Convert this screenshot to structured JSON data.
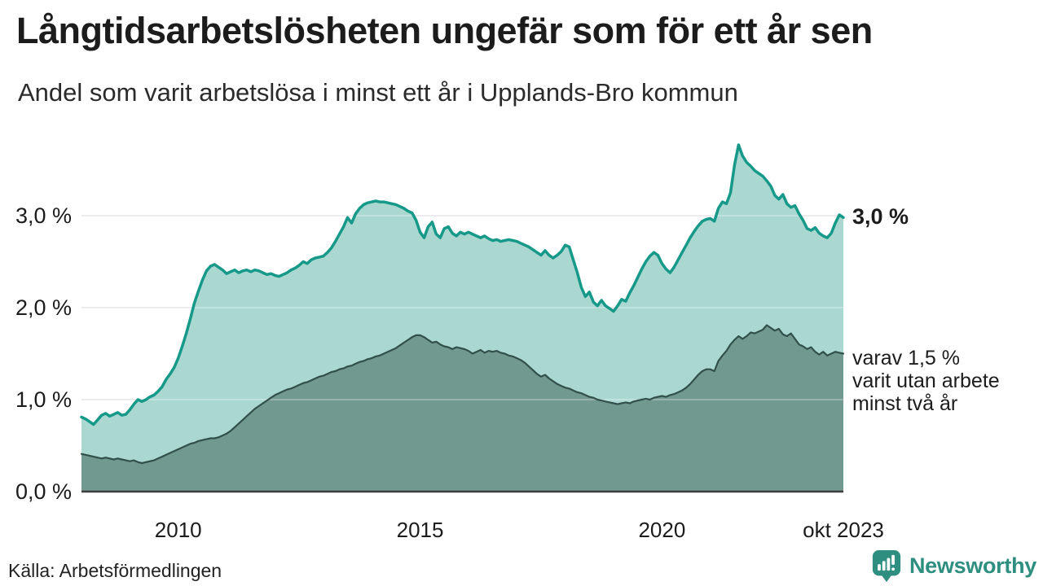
{
  "header": {
    "title": "Långtidsarbetslösheten ungefär som för ett år sen",
    "subtitle": "Andel som varit arbetslösa i minst ett år i Upplands-Bro kommun"
  },
  "chart_data": {
    "type": "area",
    "x_start": "2008-01",
    "x_end": "2023-10",
    "x_unit": "month",
    "ylim": [
      0,
      4.0
    ],
    "grid": true,
    "gridline_values": [
      1,
      2,
      3
    ],
    "y_ticks": [
      {
        "value": 0,
        "label": "0,0 %"
      },
      {
        "value": 1,
        "label": "1,0 %"
      },
      {
        "value": 2,
        "label": "2,0 %"
      },
      {
        "value": 3,
        "label": "3,0 %"
      }
    ],
    "x_ticks": [
      {
        "label": "2010",
        "month_index": 24
      },
      {
        "label": "2015",
        "month_index": 84
      },
      {
        "label": "2020",
        "month_index": 144
      },
      {
        "label": "okt 2023",
        "month_index": 189
      }
    ],
    "colors": {
      "grid": "#dcdce0",
      "baseline": "#3f3f3f",
      "text": "#1c1c1c",
      "brand_teal": "#2e8f80"
    },
    "series": [
      {
        "id": "arbetslosa-minst-ett-ar",
        "label": "Andel som varit arbetslösa i minst ett år",
        "stroke": "#17998a",
        "fill": "#aad8d1",
        "stroke_width": 3.5,
        "values": [
          0.81,
          0.79,
          0.76,
          0.73,
          0.78,
          0.83,
          0.85,
          0.82,
          0.84,
          0.86,
          0.83,
          0.84,
          0.89,
          0.95,
          1.0,
          0.98,
          1.0,
          1.03,
          1.05,
          1.09,
          1.14,
          1.22,
          1.28,
          1.35,
          1.45,
          1.58,
          1.72,
          1.88,
          2.05,
          2.18,
          2.3,
          2.4,
          2.45,
          2.47,
          2.44,
          2.41,
          2.37,
          2.39,
          2.41,
          2.38,
          2.4,
          2.41,
          2.39,
          2.41,
          2.4,
          2.38,
          2.36,
          2.37,
          2.35,
          2.34,
          2.36,
          2.38,
          2.41,
          2.43,
          2.46,
          2.5,
          2.48,
          2.52,
          2.54,
          2.55,
          2.56,
          2.6,
          2.65,
          2.72,
          2.8,
          2.88,
          2.98,
          2.92,
          3.02,
          3.08,
          3.12,
          3.14,
          3.15,
          3.16,
          3.15,
          3.15,
          3.14,
          3.13,
          3.12,
          3.1,
          3.08,
          3.05,
          3.03,
          2.95,
          2.82,
          2.76,
          2.88,
          2.93,
          2.8,
          2.76,
          2.86,
          2.88,
          2.81,
          2.78,
          2.82,
          2.8,
          2.82,
          2.8,
          2.78,
          2.76,
          2.78,
          2.75,
          2.73,
          2.74,
          2.72,
          2.73,
          2.74,
          2.73,
          2.72,
          2.7,
          2.68,
          2.66,
          2.63,
          2.6,
          2.57,
          2.62,
          2.57,
          2.54,
          2.57,
          2.61,
          2.68,
          2.66,
          2.52,
          2.38,
          2.22,
          2.12,
          2.17,
          2.06,
          2.02,
          2.08,
          2.02,
          1.99,
          1.96,
          2.02,
          2.09,
          2.07,
          2.16,
          2.24,
          2.33,
          2.42,
          2.5,
          2.56,
          2.6,
          2.57,
          2.48,
          2.42,
          2.38,
          2.44,
          2.52,
          2.6,
          2.68,
          2.76,
          2.83,
          2.89,
          2.94,
          2.96,
          2.97,
          2.94,
          3.08,
          3.15,
          3.13,
          3.25,
          3.55,
          3.77,
          3.65,
          3.58,
          3.54,
          3.49,
          3.46,
          3.43,
          3.38,
          3.32,
          3.22,
          3.18,
          3.23,
          3.13,
          3.09,
          3.11,
          3.02,
          2.95,
          2.86,
          2.84,
          2.87,
          2.81,
          2.78,
          2.76,
          2.81,
          2.92,
          3.01,
          2.98
        ]
      },
      {
        "id": "varav-utan-arbete-minst-tva-ar",
        "label": "varav varit utan arbete minst två år",
        "stroke": "#31504a",
        "fill": "#71998f",
        "stroke_width": 2.2,
        "values": [
          0.41,
          0.4,
          0.39,
          0.38,
          0.37,
          0.36,
          0.37,
          0.36,
          0.35,
          0.36,
          0.35,
          0.34,
          0.33,
          0.34,
          0.32,
          0.31,
          0.32,
          0.33,
          0.34,
          0.36,
          0.38,
          0.4,
          0.42,
          0.44,
          0.46,
          0.48,
          0.5,
          0.52,
          0.53,
          0.55,
          0.56,
          0.57,
          0.58,
          0.58,
          0.59,
          0.61,
          0.63,
          0.66,
          0.7,
          0.74,
          0.78,
          0.82,
          0.86,
          0.9,
          0.93,
          0.96,
          0.99,
          1.02,
          1.05,
          1.07,
          1.09,
          1.11,
          1.12,
          1.14,
          1.16,
          1.18,
          1.19,
          1.21,
          1.23,
          1.25,
          1.26,
          1.28,
          1.3,
          1.31,
          1.33,
          1.34,
          1.36,
          1.37,
          1.39,
          1.41,
          1.42,
          1.44,
          1.45,
          1.47,
          1.48,
          1.5,
          1.52,
          1.54,
          1.56,
          1.59,
          1.62,
          1.65,
          1.68,
          1.7,
          1.7,
          1.68,
          1.65,
          1.62,
          1.63,
          1.6,
          1.58,
          1.57,
          1.55,
          1.57,
          1.56,
          1.55,
          1.53,
          1.5,
          1.52,
          1.54,
          1.51,
          1.53,
          1.52,
          1.53,
          1.51,
          1.5,
          1.48,
          1.47,
          1.45,
          1.43,
          1.4,
          1.36,
          1.32,
          1.28,
          1.25,
          1.27,
          1.23,
          1.2,
          1.17,
          1.15,
          1.13,
          1.12,
          1.1,
          1.08,
          1.07,
          1.05,
          1.03,
          1.02,
          1.0,
          0.99,
          0.98,
          0.97,
          0.96,
          0.95,
          0.96,
          0.97,
          0.96,
          0.98,
          0.99,
          1.0,
          1.01,
          1.0,
          1.02,
          1.03,
          1.04,
          1.03,
          1.05,
          1.06,
          1.08,
          1.1,
          1.13,
          1.17,
          1.22,
          1.27,
          1.31,
          1.33,
          1.33,
          1.31,
          1.42,
          1.48,
          1.53,
          1.6,
          1.65,
          1.69,
          1.66,
          1.69,
          1.73,
          1.72,
          1.74,
          1.76,
          1.81,
          1.78,
          1.75,
          1.77,
          1.71,
          1.69,
          1.72,
          1.66,
          1.6,
          1.58,
          1.55,
          1.57,
          1.52,
          1.49,
          1.52,
          1.48,
          1.5,
          1.52,
          1.51,
          1.5
        ]
      }
    ],
    "end_annotations": {
      "total": "3,0 %",
      "subset": "varav 1,5 %\nvarit utan arbete\nminst två år"
    }
  },
  "footer": {
    "source": "Källa: Arbetsförmedlingen",
    "brand": "Newsworthy"
  }
}
